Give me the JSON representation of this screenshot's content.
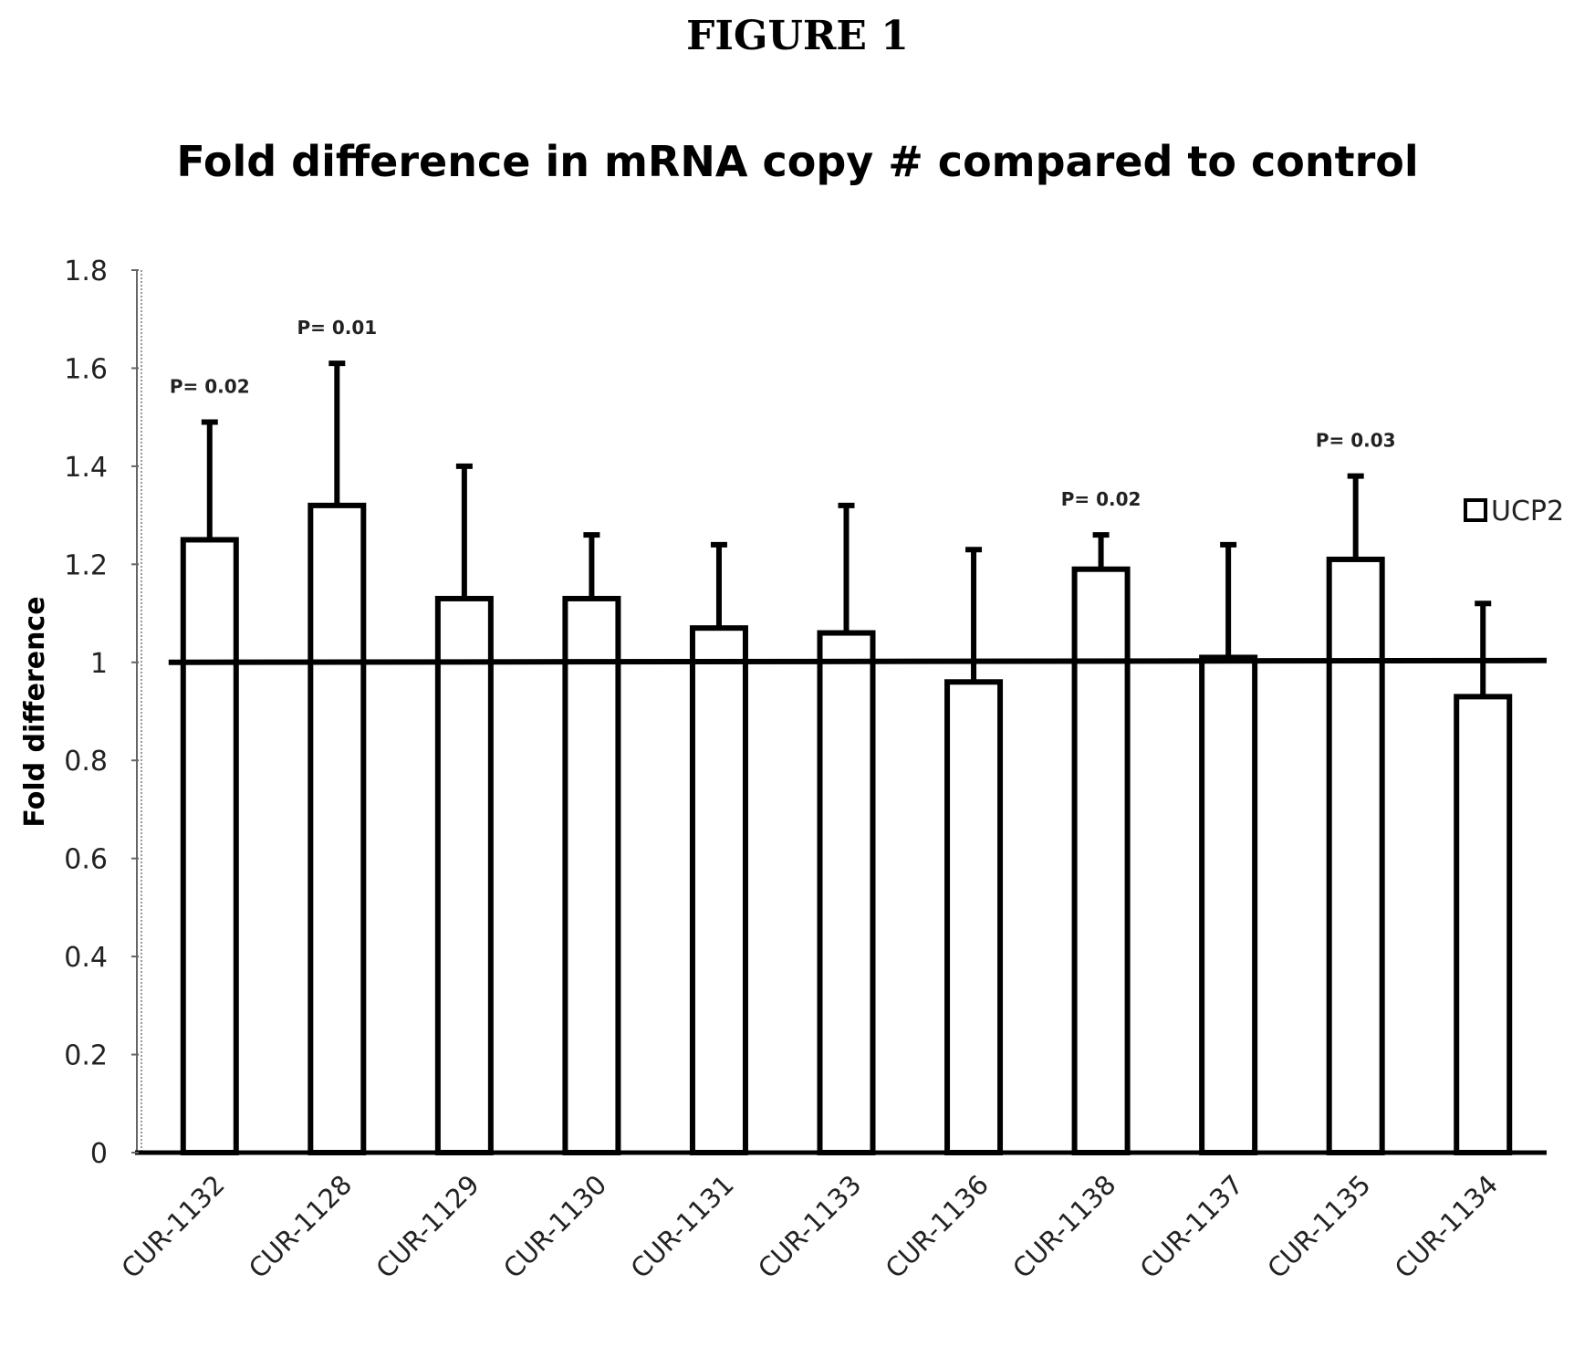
{
  "figure_label": "FIGURE 1",
  "chart_data": {
    "type": "bar",
    "title": "Fold difference in mRNA copy # compared to control",
    "xlabel": "",
    "ylabel": "Fold difference",
    "ylim": [
      0,
      1.8
    ],
    "yticks": [
      "0",
      "0.2",
      "0.4",
      "0.6",
      "0.8",
      "1",
      "1.2",
      "1.4",
      "1.6",
      "1.8"
    ],
    "categories": [
      "CUR-1132",
      "CUR-1128",
      "CUR-1129",
      "CUR-1130",
      "CUR-1131",
      "CUR-1133",
      "CUR-1136",
      "CUR-1138",
      "CUR-1137",
      "CUR-1135",
      "CUR-1134"
    ],
    "series": [
      {
        "name": "UCP2",
        "values": [
          1.25,
          1.32,
          1.13,
          1.13,
          1.07,
          1.06,
          0.96,
          1.19,
          1.01,
          1.21,
          0.93
        ],
        "error_upper": [
          1.49,
          1.61,
          1.4,
          1.26,
          1.24,
          1.32,
          1.23,
          1.26,
          1.24,
          1.38,
          1.12
        ],
        "color": "#ffffff"
      }
    ],
    "reference_line": 1,
    "annotations": [
      "P= 0.02",
      "P= 0.01",
      "",
      "",
      "",
      "",
      "",
      "P= 0.02",
      "",
      "P= 0.03",
      ""
    ],
    "grid": false,
    "legend_position": "right"
  }
}
